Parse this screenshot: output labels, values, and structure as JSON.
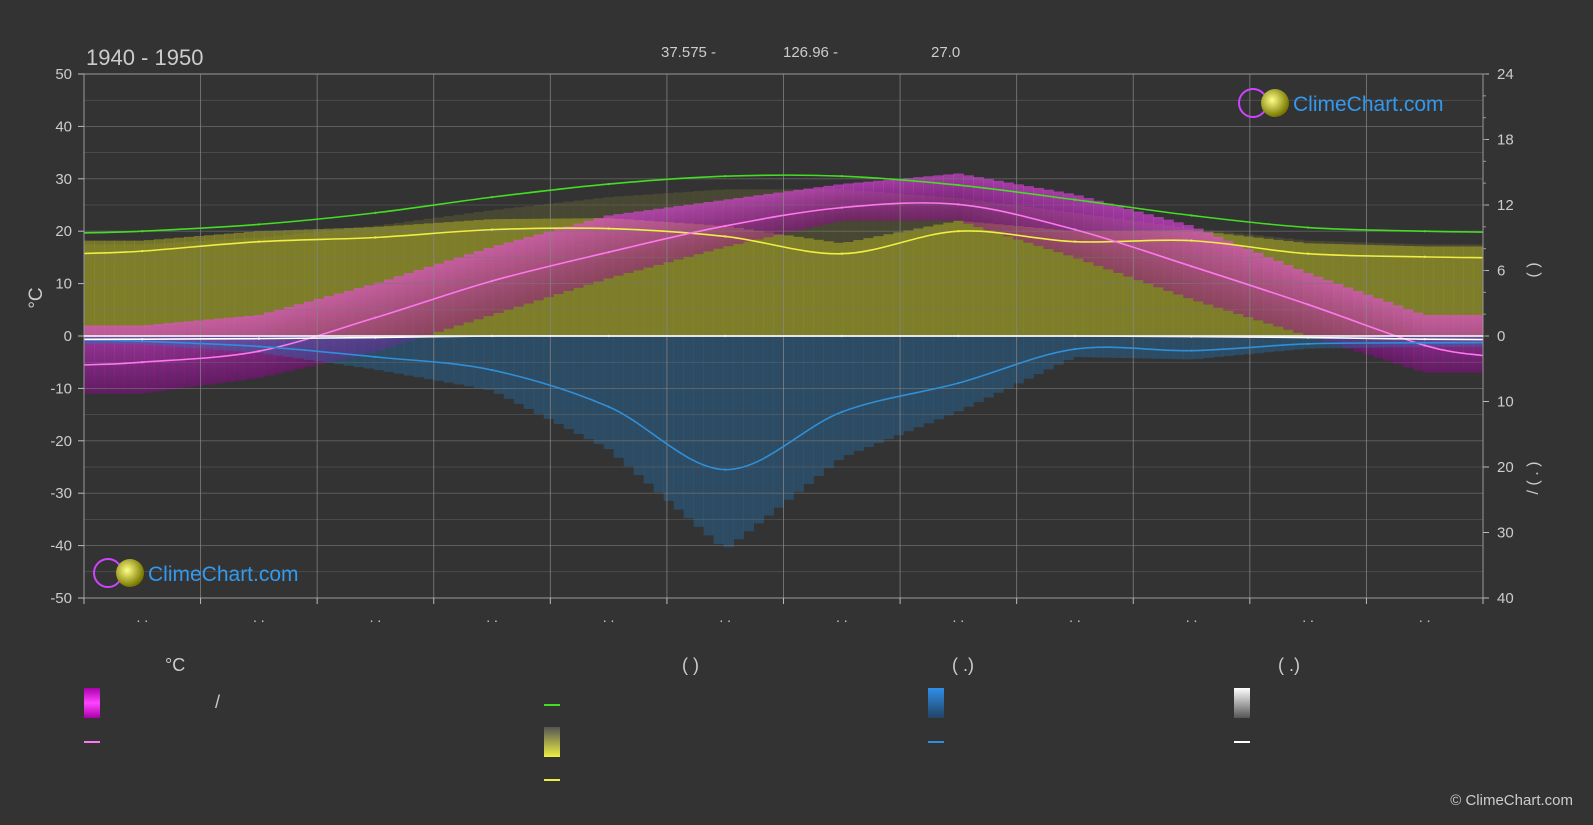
{
  "header": {
    "period": "1940 - 1950",
    "lat": "37.575 -",
    "lon": "126.96 -",
    "elev": "27.0"
  },
  "watermark": {
    "text": "ClimeChart.com"
  },
  "copyright": "© ClimeChart.com",
  "legend": {
    "temp_header": "°C",
    "sun_header": "(          )",
    "rain_header": "(   .)",
    "snow_header": "(   .)",
    "temp_range_label": "/"
  },
  "chart_data": {
    "type": "line",
    "x_months": [
      "Jan",
      "Feb",
      "Mar",
      "Apr",
      "May",
      "Jun",
      "Jul",
      "Aug",
      "Sep",
      "Oct",
      "Nov",
      "Dec"
    ],
    "month_tick_labels": [
      ". .",
      ". .",
      ". .",
      ". .",
      ". .",
      ". .",
      ". .",
      ". .",
      ". .",
      ". .",
      ". .",
      ". ."
    ],
    "ylabel_left": "°C",
    "ylim_left": [
      -50,
      50
    ],
    "yticks_left": [
      50,
      40,
      30,
      20,
      10,
      0,
      -10,
      -20,
      -30,
      -40,
      -50
    ],
    "right_axis_upper": {
      "ticks": [
        24,
        18,
        12,
        6,
        0
      ],
      "range": [
        0,
        24
      ],
      "label": "(      )"
    },
    "right_axis_lower": {
      "ticks": [
        10,
        20,
        30,
        40
      ],
      "range": [
        0,
        40
      ],
      "label": "/      (  .  )"
    },
    "series": [
      {
        "key": "daylight",
        "color": "#44dd22",
        "values": [
          20.0,
          21.3,
          23.5,
          26.5,
          29.0,
          30.5,
          30.5,
          28.8,
          26.0,
          23.0,
          20.7,
          20.0
        ]
      },
      {
        "key": "sunshine",
        "color": "#eeee44",
        "values": [
          16.2,
          18.0,
          18.8,
          20.3,
          20.5,
          19.0,
          15.7,
          20.0,
          18.0,
          18.2,
          15.7,
          15.1
        ]
      },
      {
        "key": "temp_mean",
        "color": "#ff77ee",
        "values": [
          -5.0,
          -2.9,
          3.5,
          10.5,
          16.0,
          21.0,
          24.5,
          25.1,
          20.3,
          13.3,
          6.0,
          -1.8
        ]
      },
      {
        "key": "precip",
        "color": "#2f8fd8",
        "values": [
          -1.0,
          -2.0,
          -4.0,
          -6.5,
          -13.5,
          -25.5,
          -14.5,
          -9.0,
          -2.5,
          -2.8,
          -1.5,
          -1.3
        ]
      },
      {
        "key": "snow",
        "color": "#ffffff",
        "values": [
          -0.6,
          -0.5,
          -0.3,
          0,
          0,
          0,
          0,
          0,
          0,
          -0.1,
          -0.3,
          -0.6
        ]
      }
    ],
    "temp_band": {
      "min": [
        -11,
        -8,
        -3,
        4,
        11,
        17,
        22,
        22,
        15,
        7,
        0,
        -7
      ],
      "max": [
        2,
        4,
        10,
        17,
        23,
        26,
        29,
        31,
        27,
        21,
        12,
        4
      ]
    },
    "colors": {
      "background": "#333333",
      "grid": "#666666",
      "temp_band": "#dd00dd",
      "sunshine_band": "#aaaa22",
      "precip_band": "#2277bb"
    }
  }
}
